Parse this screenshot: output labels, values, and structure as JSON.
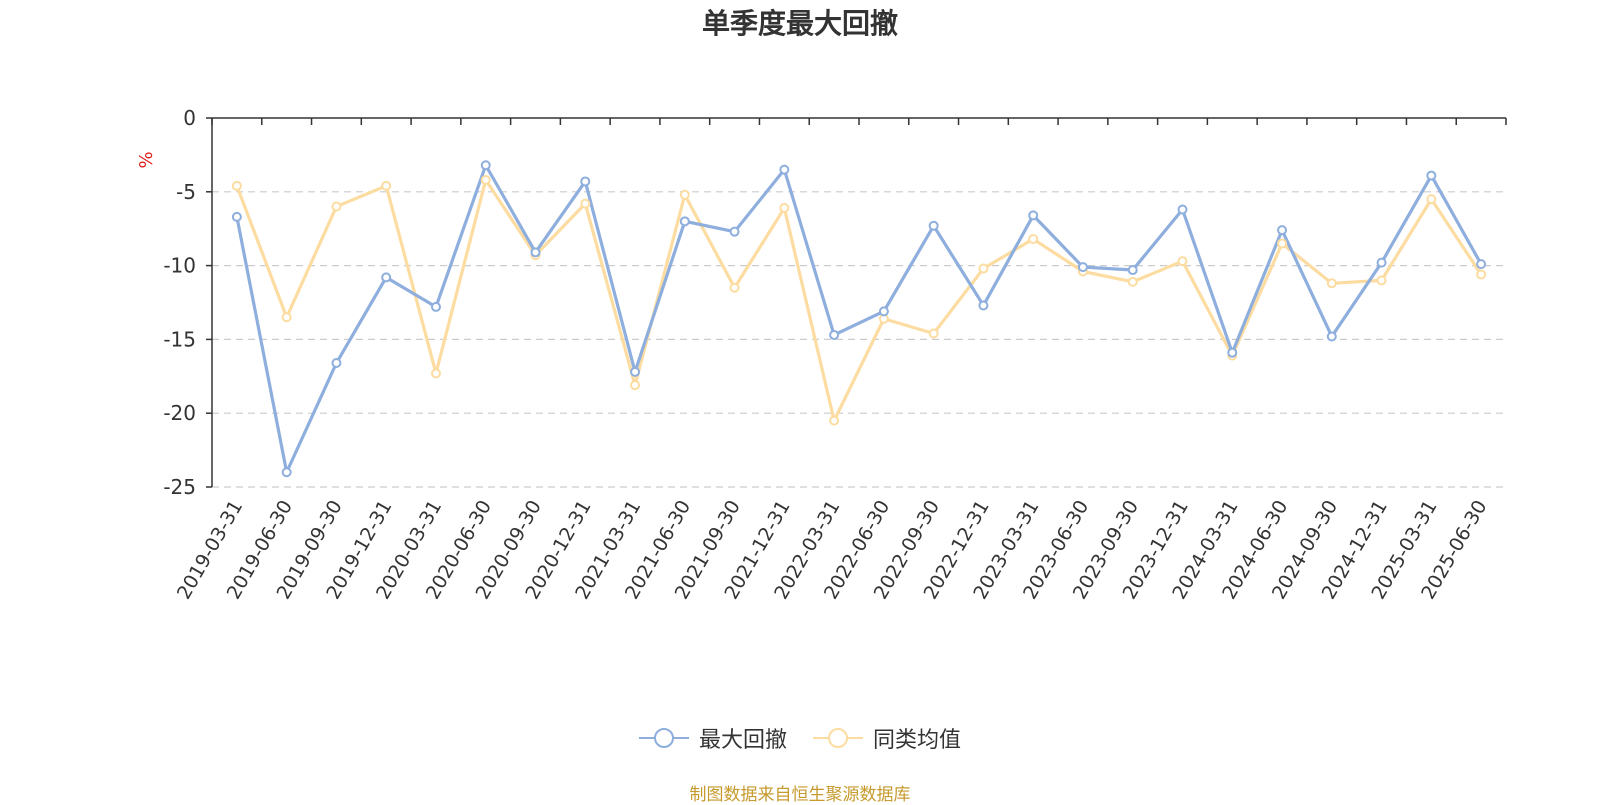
{
  "chart_data": {
    "type": "line",
    "title": "单季度最大回撤",
    "ylabel": "%",
    "ylim": [
      -25,
      0
    ],
    "yticks": [
      0,
      -5,
      -10,
      -15,
      -20,
      -25
    ],
    "grid": true,
    "legend_position": "bottom-center",
    "x": [
      "2019-03-31",
      "2019-06-30",
      "2019-09-30",
      "2019-12-31",
      "2020-03-31",
      "2020-06-30",
      "2020-09-30",
      "2020-12-31",
      "2021-03-31",
      "2021-06-30",
      "2021-09-30",
      "2021-12-31",
      "2022-03-31",
      "2022-06-30",
      "2022-09-30",
      "2022-12-31",
      "2023-03-31",
      "2023-06-30",
      "2023-09-30",
      "2023-12-31",
      "2024-03-31",
      "2024-06-30",
      "2024-09-30",
      "2024-12-31",
      "2025-03-31",
      "2025-06-30"
    ],
    "series": [
      {
        "name": "最大回撤",
        "color": "#8eaedd",
        "values": [
          -6.7,
          -24.0,
          -16.6,
          -10.8,
          -12.8,
          -3.2,
          -9.1,
          -4.3,
          -17.2,
          -7.0,
          -7.7,
          -3.5,
          -14.7,
          -13.1,
          -7.3,
          -12.7,
          -6.6,
          -10.1,
          -10.3,
          -6.2,
          -15.9,
          -7.6,
          -14.8,
          -9.8,
          -3.9,
          -9.9
        ]
      },
      {
        "name": "同类均值",
        "color": "#fcdca0",
        "values": [
          -4.6,
          -13.5,
          -6.0,
          -4.6,
          -17.3,
          -4.2,
          -9.3,
          -5.8,
          -18.1,
          -5.2,
          -11.5,
          -6.1,
          -20.5,
          -13.6,
          -14.6,
          -10.2,
          -8.2,
          -10.4,
          -11.1,
          -9.7,
          -16.1,
          -8.5,
          -11.2,
          -11.0,
          -5.5,
          -10.6
        ]
      }
    ]
  },
  "source_note": "制图数据来自恒生聚源数据库"
}
